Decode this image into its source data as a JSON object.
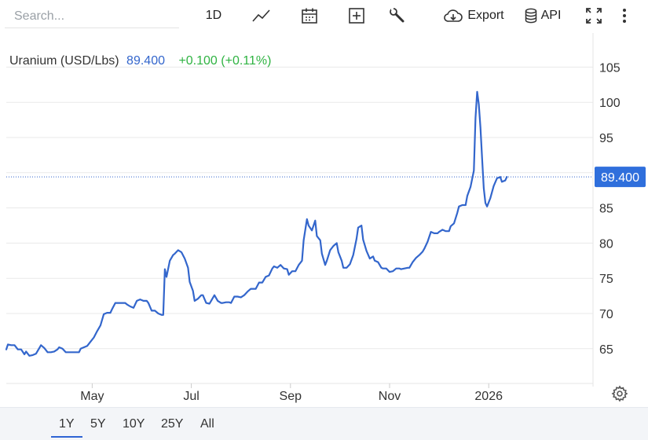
{
  "toolbar": {
    "search_placeholder": "Search...",
    "interval_label": "1D",
    "export_label": "Export",
    "api_label": "API"
  },
  "header": {
    "instrument": "Uranium (USD/Lbs)",
    "price": "89.400",
    "change": "+0.100 (+0.11%)"
  },
  "price_tag": "89.400",
  "ranges": [
    "1Y",
    "5Y",
    "10Y",
    "25Y",
    "All"
  ],
  "active_range": "1Y",
  "colors": {
    "line": "#3366cc",
    "price_text": "#3366cc",
    "change_text": "#2fb342",
    "price_tag_bg": "#2f6fdc"
  },
  "chart_data": {
    "type": "line",
    "title": "Uranium (USD/Lbs)",
    "xlabel": "",
    "ylabel": "",
    "ylim": [
      60,
      108
    ],
    "y_ticks": [
      65,
      70,
      75,
      80,
      85,
      90,
      95,
      100,
      105
    ],
    "y_tick_labels": [
      "65",
      "70",
      "75",
      "80",
      "85",
      "",
      "95",
      "100",
      "105"
    ],
    "x_ticks": [
      {
        "t": 18,
        "label": "May"
      },
      {
        "t": 24,
        "label": "Jul"
      },
      {
        "t": 30,
        "label": "Sep"
      },
      {
        "t": 36,
        "label": "Nov"
      },
      {
        "t": 42,
        "label": "2026"
      }
    ],
    "x_range": [
      12.8,
      47.6
    ],
    "grid": true,
    "current_value": 89.4,
    "series": [
      {
        "points": [
          [
            12.8,
            64.9
          ],
          [
            12.9,
            65.6
          ],
          [
            13.1,
            65.5
          ],
          [
            13.3,
            65.5
          ],
          [
            13.5,
            64.9
          ],
          [
            13.7,
            64.9
          ],
          [
            13.9,
            64.2
          ],
          [
            14.0,
            64.6
          ],
          [
            14.2,
            64.0
          ],
          [
            14.4,
            64.1
          ],
          [
            14.6,
            64.3
          ],
          [
            14.8,
            65.1
          ],
          [
            14.9,
            65.5
          ],
          [
            15.1,
            65.1
          ],
          [
            15.3,
            64.5
          ],
          [
            15.5,
            64.5
          ],
          [
            15.7,
            64.6
          ],
          [
            15.9,
            64.9
          ],
          [
            16.0,
            65.2
          ],
          [
            16.2,
            65.0
          ],
          [
            16.4,
            64.5
          ],
          [
            16.6,
            64.5
          ],
          [
            16.8,
            64.5
          ],
          [
            17.0,
            64.5
          ],
          [
            17.2,
            64.5
          ],
          [
            17.3,
            65.0
          ],
          [
            17.5,
            65.2
          ],
          [
            17.7,
            65.4
          ],
          [
            17.9,
            66.0
          ],
          [
            18.1,
            66.6
          ],
          [
            18.3,
            67.5
          ],
          [
            18.5,
            68.3
          ],
          [
            18.7,
            69.9
          ],
          [
            18.9,
            70.1
          ],
          [
            19.1,
            70.1
          ],
          [
            19.2,
            70.6
          ],
          [
            19.4,
            71.5
          ],
          [
            19.6,
            71.5
          ],
          [
            19.8,
            71.5
          ],
          [
            20.0,
            71.5
          ],
          [
            20.1,
            71.3
          ],
          [
            20.3,
            71.0
          ],
          [
            20.5,
            70.8
          ],
          [
            20.7,
            71.8
          ],
          [
            20.9,
            72.0
          ],
          [
            21.1,
            71.8
          ],
          [
            21.3,
            71.8
          ],
          [
            21.4,
            71.5
          ],
          [
            21.6,
            70.4
          ],
          [
            21.8,
            70.4
          ],
          [
            22.0,
            70.0
          ],
          [
            22.2,
            69.8
          ],
          [
            22.3,
            69.8
          ],
          [
            22.4,
            76.3
          ],
          [
            22.5,
            75.2
          ],
          [
            22.7,
            77.5
          ],
          [
            22.9,
            78.3
          ],
          [
            23.0,
            78.5
          ],
          [
            23.2,
            79.0
          ],
          [
            23.4,
            78.7
          ],
          [
            23.6,
            77.8
          ],
          [
            23.8,
            76.5
          ],
          [
            23.9,
            74.5
          ],
          [
            24.1,
            73.2
          ],
          [
            24.2,
            71.8
          ],
          [
            24.4,
            72.1
          ],
          [
            24.6,
            72.6
          ],
          [
            24.7,
            72.6
          ],
          [
            24.9,
            71.5
          ],
          [
            25.1,
            71.4
          ],
          [
            25.2,
            71.8
          ],
          [
            25.4,
            72.6
          ],
          [
            25.6,
            71.8
          ],
          [
            25.8,
            71.5
          ],
          [
            25.9,
            71.5
          ],
          [
            26.1,
            71.6
          ],
          [
            26.3,
            71.6
          ],
          [
            26.4,
            71.5
          ],
          [
            26.6,
            72.4
          ],
          [
            26.8,
            72.4
          ],
          [
            27.0,
            72.3
          ],
          [
            27.2,
            72.6
          ],
          [
            27.4,
            73.1
          ],
          [
            27.6,
            73.5
          ],
          [
            27.8,
            73.5
          ],
          [
            27.9,
            73.5
          ],
          [
            28.1,
            74.4
          ],
          [
            28.3,
            74.4
          ],
          [
            28.5,
            75.2
          ],
          [
            28.7,
            75.4
          ],
          [
            28.9,
            76.4
          ],
          [
            29.0,
            76.7
          ],
          [
            29.2,
            76.5
          ],
          [
            29.4,
            76.9
          ],
          [
            29.6,
            76.4
          ],
          [
            29.8,
            76.3
          ],
          [
            29.9,
            75.5
          ],
          [
            30.1,
            76.0
          ],
          [
            30.3,
            76.0
          ],
          [
            30.5,
            76.9
          ],
          [
            30.7,
            77.5
          ],
          [
            30.8,
            80.4
          ],
          [
            31.0,
            83.4
          ],
          [
            31.1,
            82.5
          ],
          [
            31.3,
            81.8
          ],
          [
            31.5,
            83.2
          ],
          [
            31.6,
            81.0
          ],
          [
            31.8,
            80.4
          ],
          [
            31.9,
            78.5
          ],
          [
            32.1,
            76.9
          ],
          [
            32.2,
            77.5
          ],
          [
            32.4,
            79.0
          ],
          [
            32.6,
            79.6
          ],
          [
            32.8,
            80.0
          ],
          [
            32.9,
            78.7
          ],
          [
            33.1,
            77.5
          ],
          [
            33.2,
            76.5
          ],
          [
            33.4,
            76.5
          ],
          [
            33.6,
            77.0
          ],
          [
            33.8,
            78.3
          ],
          [
            34.0,
            80.6
          ],
          [
            34.1,
            82.2
          ],
          [
            34.3,
            82.5
          ],
          [
            34.4,
            80.5
          ],
          [
            34.6,
            78.9
          ],
          [
            34.8,
            77.8
          ],
          [
            35.0,
            78.1
          ],
          [
            35.1,
            77.5
          ],
          [
            35.3,
            77.3
          ],
          [
            35.5,
            76.5
          ],
          [
            35.6,
            76.4
          ],
          [
            35.8,
            76.4
          ],
          [
            36.0,
            75.9
          ],
          [
            36.2,
            76.0
          ],
          [
            36.4,
            76.4
          ],
          [
            36.6,
            76.4
          ],
          [
            36.7,
            76.3
          ],
          [
            36.9,
            76.4
          ],
          [
            37.1,
            76.5
          ],
          [
            37.2,
            76.5
          ],
          [
            37.4,
            77.3
          ],
          [
            37.6,
            77.9
          ],
          [
            37.8,
            78.3
          ],
          [
            38.0,
            78.8
          ],
          [
            38.1,
            79.2
          ],
          [
            38.3,
            80.2
          ],
          [
            38.5,
            81.6
          ],
          [
            38.7,
            81.4
          ],
          [
            38.9,
            81.4
          ],
          [
            39.0,
            81.6
          ],
          [
            39.2,
            81.9
          ],
          [
            39.4,
            81.7
          ],
          [
            39.6,
            81.7
          ],
          [
            39.7,
            82.4
          ],
          [
            39.9,
            82.8
          ],
          [
            40.1,
            84.3
          ],
          [
            40.2,
            85.2
          ],
          [
            40.4,
            85.4
          ],
          [
            40.6,
            85.4
          ],
          [
            40.7,
            86.7
          ],
          [
            40.9,
            88.0
          ],
          [
            41.1,
            90.3
          ],
          [
            41.2,
            97.8
          ],
          [
            41.3,
            101.5
          ],
          [
            41.4,
            99.7
          ],
          [
            41.5,
            96.4
          ],
          [
            41.6,
            92.0
          ],
          [
            41.7,
            87.8
          ],
          [
            41.8,
            85.7
          ],
          [
            41.9,
            85.2
          ],
          [
            42.1,
            86.4
          ],
          [
            42.3,
            88.1
          ],
          [
            42.5,
            89.2
          ],
          [
            42.7,
            89.4
          ],
          [
            42.8,
            88.7
          ],
          [
            43.0,
            88.9
          ],
          [
            43.1,
            89.4
          ]
        ]
      }
    ]
  }
}
